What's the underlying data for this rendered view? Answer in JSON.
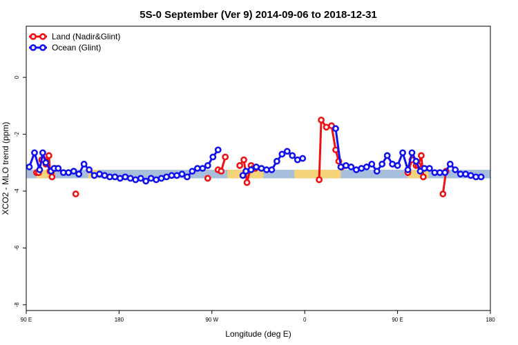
{
  "chart_data": {
    "type": "line",
    "title": "5S-0 September (Ver 9)   2014-09-06 to 2018-12-31",
    "xlabel": "Longitude (deg E)",
    "ylabel": "XCO2 - MLO trend (ppm)",
    "xlim": [
      90,
      540
    ],
    "ylim": [
      -8.2,
      1.8
    ],
    "x_ticks": [
      {
        "value": 90,
        "label": "90 E"
      },
      {
        "value": 180,
        "label": "180"
      },
      {
        "value": 270,
        "label": "90 W"
      },
      {
        "value": 360,
        "label": "0"
      },
      {
        "value": 450,
        "label": "90 E"
      },
      {
        "value": 540,
        "label": "180"
      }
    ],
    "y_ticks": [
      {
        "value": 0,
        "label": "0"
      },
      {
        "value": -2,
        "label": "-2"
      },
      {
        "value": -4,
        "label": "-4"
      },
      {
        "value": -6,
        "label": "-6"
      },
      {
        "value": -8,
        "label": "-8"
      }
    ],
    "grid": false,
    "legend_position": "top-left",
    "band": {
      "y_range": [
        -3.55,
        -3.25
      ],
      "color": "#a8bfdc",
      "land_color": "#f5d37a"
    },
    "land_segments": [
      [
        100,
        118
      ],
      [
        150,
        160
      ],
      [
        285,
        320
      ],
      [
        350,
        395
      ],
      [
        460,
        480
      ]
    ],
    "series": [
      {
        "name": "Land (Nadir&Glint)",
        "color": "#ee1111",
        "points": [
          [
            100,
            -3.35
          ],
          [
            102,
            -3.35
          ],
          [
            105,
            -2.9
          ],
          [
            107,
            -2.9
          ],
          [
            109,
            -3.05
          ],
          [
            112,
            -2.75
          ],
          [
            113,
            -3.3
          ],
          [
            115,
            -3.5
          ],
          [
            118,
            -3.2
          ],
          [
            138,
            -4.1
          ],
          [
            266,
            -3.55
          ],
          [
            276,
            -3.25
          ],
          [
            279,
            -3.3
          ],
          [
            283,
            -2.8
          ],
          [
            297,
            -3.1
          ],
          [
            301,
            -2.9
          ],
          [
            304,
            -3.7
          ],
          [
            308,
            -3.1
          ],
          [
            310,
            -3.2
          ],
          [
            312,
            -3.2
          ],
          [
            374,
            -3.6
          ],
          [
            376,
            -1.5
          ],
          [
            381,
            -1.75
          ],
          [
            386,
            -1.7
          ],
          [
            390,
            -2.55
          ],
          [
            393,
            -2.95
          ],
          [
            396,
            -3.15
          ],
          [
            460,
            -3.35
          ],
          [
            464,
            -2.9
          ],
          [
            468,
            -3.1
          ],
          [
            470,
            -3.1
          ],
          [
            473,
            -2.75
          ],
          [
            475,
            -3.5
          ],
          [
            494,
            -4.1
          ],
          [
            497,
            -3.3
          ]
        ]
      },
      {
        "name": "Ocean (Glint)",
        "color": "#1111ee",
        "points": [
          [
            93,
            -3.15
          ],
          [
            98,
            -2.65
          ],
          [
            103,
            -3.25
          ],
          [
            106,
            -2.65
          ],
          [
            109,
            -3.0
          ],
          [
            114,
            -3.3
          ],
          [
            117,
            -3.2
          ],
          [
            121,
            -3.2
          ],
          [
            126,
            -3.35
          ],
          [
            131,
            -3.35
          ],
          [
            136,
            -3.3
          ],
          [
            141,
            -3.4
          ],
          [
            146,
            -3.05
          ],
          [
            151,
            -3.25
          ],
          [
            156,
            -3.45
          ],
          [
            161,
            -3.4
          ],
          [
            166,
            -3.45
          ],
          [
            171,
            -3.5
          ],
          [
            176,
            -3.5
          ],
          [
            181,
            -3.55
          ],
          [
            186,
            -3.5
          ],
          [
            191,
            -3.55
          ],
          [
            196,
            -3.6
          ],
          [
            201,
            -3.55
          ],
          [
            206,
            -3.65
          ],
          [
            211,
            -3.55
          ],
          [
            216,
            -3.6
          ],
          [
            221,
            -3.55
          ],
          [
            226,
            -3.5
          ],
          [
            231,
            -3.45
          ],
          [
            236,
            -3.45
          ],
          [
            241,
            -3.4
          ],
          [
            246,
            -3.5
          ],
          [
            251,
            -3.3
          ],
          [
            256,
            -3.2
          ],
          [
            261,
            -3.2
          ],
          [
            266,
            -3.1
          ],
          [
            271,
            -2.8
          ],
          [
            276,
            -2.55
          ],
          [
            300,
            -3.45
          ],
          [
            303,
            -3.3
          ],
          [
            308,
            -3.25
          ],
          [
            313,
            -3.15
          ],
          [
            318,
            -3.2
          ],
          [
            323,
            -3.25
          ],
          [
            328,
            -3.25
          ],
          [
            333,
            -2.95
          ],
          [
            338,
            -2.7
          ],
          [
            343,
            -2.6
          ],
          [
            348,
            -2.75
          ],
          [
            353,
            -2.9
          ],
          [
            358,
            -2.85
          ],
          [
            390,
            -1.8
          ],
          [
            395,
            -3.15
          ],
          [
            400,
            -3.1
          ],
          [
            405,
            -3.15
          ],
          [
            410,
            -3.25
          ],
          [
            415,
            -3.2
          ],
          [
            420,
            -3.15
          ],
          [
            425,
            -3.05
          ],
          [
            430,
            -3.3
          ],
          [
            435,
            -3.05
          ],
          [
            440,
            -2.75
          ],
          [
            445,
            -3.05
          ],
          [
            450,
            -3.1
          ],
          [
            455,
            -2.65
          ],
          [
            460,
            -3.25
          ],
          [
            464,
            -2.65
          ],
          [
            468,
            -2.95
          ],
          [
            472,
            -3.3
          ],
          [
            476,
            -3.2
          ],
          [
            481,
            -3.2
          ],
          [
            486,
            -3.35
          ],
          [
            491,
            -3.35
          ],
          [
            496,
            -3.35
          ],
          [
            501,
            -3.05
          ],
          [
            506,
            -3.25
          ],
          [
            511,
            -3.4
          ],
          [
            516,
            -3.4
          ],
          [
            521,
            -3.45
          ],
          [
            526,
            -3.5
          ],
          [
            531,
            -3.5
          ]
        ]
      }
    ]
  }
}
